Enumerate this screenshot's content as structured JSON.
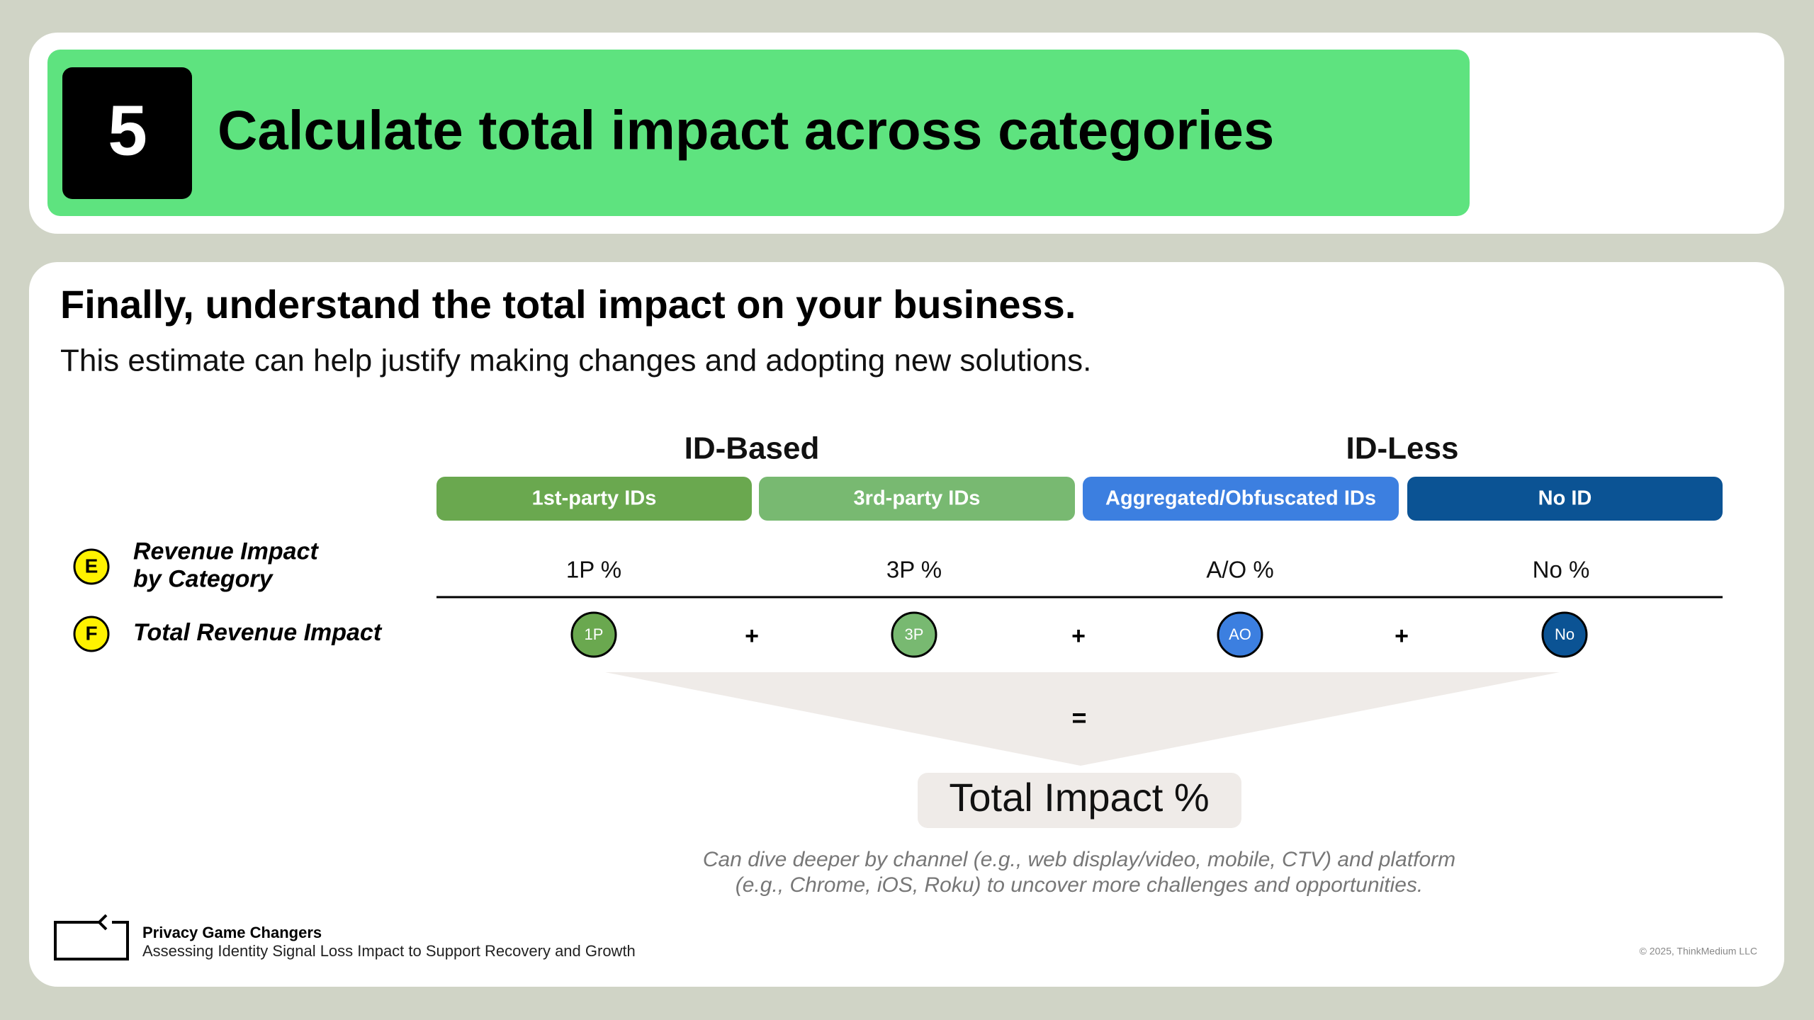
{
  "header": {
    "step": "5",
    "title": "Calculate total impact across categories"
  },
  "heading": "Finally, understand the total impact on your business.",
  "subheading": "This estimate can help justify making changes and adopting new solutions.",
  "groups": [
    "ID-Based",
    "ID-Less"
  ],
  "categories": [
    {
      "label": "1st-party IDs",
      "percent": "1P %",
      "badge": "1P",
      "color": "#6aa84f"
    },
    {
      "label": "3rd-party IDs",
      "percent": "3P %",
      "badge": "3P",
      "color": "#78b971"
    },
    {
      "label": "Aggregated/Obfuscated IDs",
      "percent": "A/O %",
      "badge": "AO",
      "color": "#3c7fe0"
    },
    {
      "label": "No ID",
      "percent": "No %",
      "badge": "No",
      "color": "#0b5394"
    }
  ],
  "rows": [
    {
      "marker": "E",
      "label": [
        "Revenue Impact",
        "by Category"
      ]
    },
    {
      "marker": "F",
      "label": [
        "Total Revenue Impact"
      ]
    }
  ],
  "plus_signs": [
    "+",
    "+",
    "+"
  ],
  "equals": "=",
  "total": "Total Impact %",
  "note": [
    "Can dive deeper by channel (e.g., web display/video, mobile, CTV) and platform",
    "(e.g., Chrome, iOS, Roku) to uncover more challenges and opportunities."
  ],
  "footer": {
    "brand": "Privacy Game Changers",
    "tagline": "Assessing Identity Signal Loss Impact to Support Recovery and Growth",
    "copyright": "© 2025, ThinkMedium LLC"
  }
}
